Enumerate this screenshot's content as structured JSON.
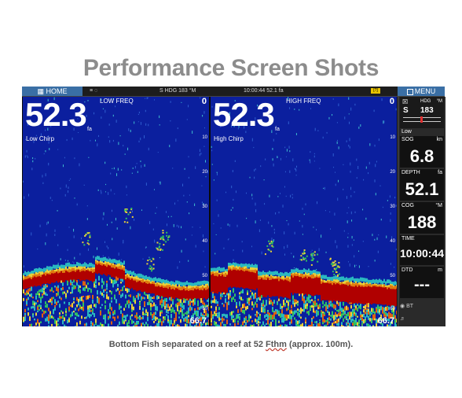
{
  "title": "Performance Screen Shots",
  "caption": {
    "before": "Bottom Fish separated on a reef at 52 ",
    "underlined": "Fthm",
    "after": " (approx. 100m)."
  },
  "topbar": {
    "home_label": "HOME",
    "status_left": "≡ ◌",
    "status_hdg": "S HDG 183 °M",
    "status_time": "10:00:44  52.1 fa",
    "battery": "[?]",
    "menu_label": "MENU"
  },
  "left_panel": {
    "depth": "52.3",
    "unit": "fa",
    "freq_label": "LOW FREQ",
    "chirp_label": "Low Chirp",
    "range_top": "0",
    "range_bottom": "66.7",
    "scale": [
      "10",
      "20",
      "30",
      "40",
      "50",
      "60"
    ]
  },
  "right_panel": {
    "depth": "52.3",
    "unit": "fa",
    "freq_label": "HIGH FREQ",
    "chirp_label": "High Chirp",
    "range_top": "0",
    "range_bottom": "66.7",
    "scale": [
      "10",
      "20",
      "30",
      "40",
      "50",
      "60"
    ]
  },
  "sidebar": {
    "hdg_label": "HDG",
    "hdg_unit": "°M",
    "hdg_dir": "S",
    "hdg_value": "183",
    "low_label": "Low",
    "sog_label": "SOG",
    "sog_unit": "kn",
    "sog_value": "6.8",
    "depth_label": "DEPTH",
    "depth_unit": "fa",
    "depth_value": "52.1",
    "cog_label": "COG",
    "cog_unit": "°M",
    "cog_value": "188",
    "time_label": "TIME",
    "time_value": "10:00:44",
    "dtd_label": "DTD",
    "dtd_unit": "m",
    "dtd_value": "---",
    "bt_label": "BT",
    "vol_icon": "speaker-icon"
  },
  "colors": {
    "water": "#0b1f9e",
    "bottom_red": "#b00000",
    "accent_orange": "#e07a10",
    "button_blue": "#3a6fa5"
  }
}
